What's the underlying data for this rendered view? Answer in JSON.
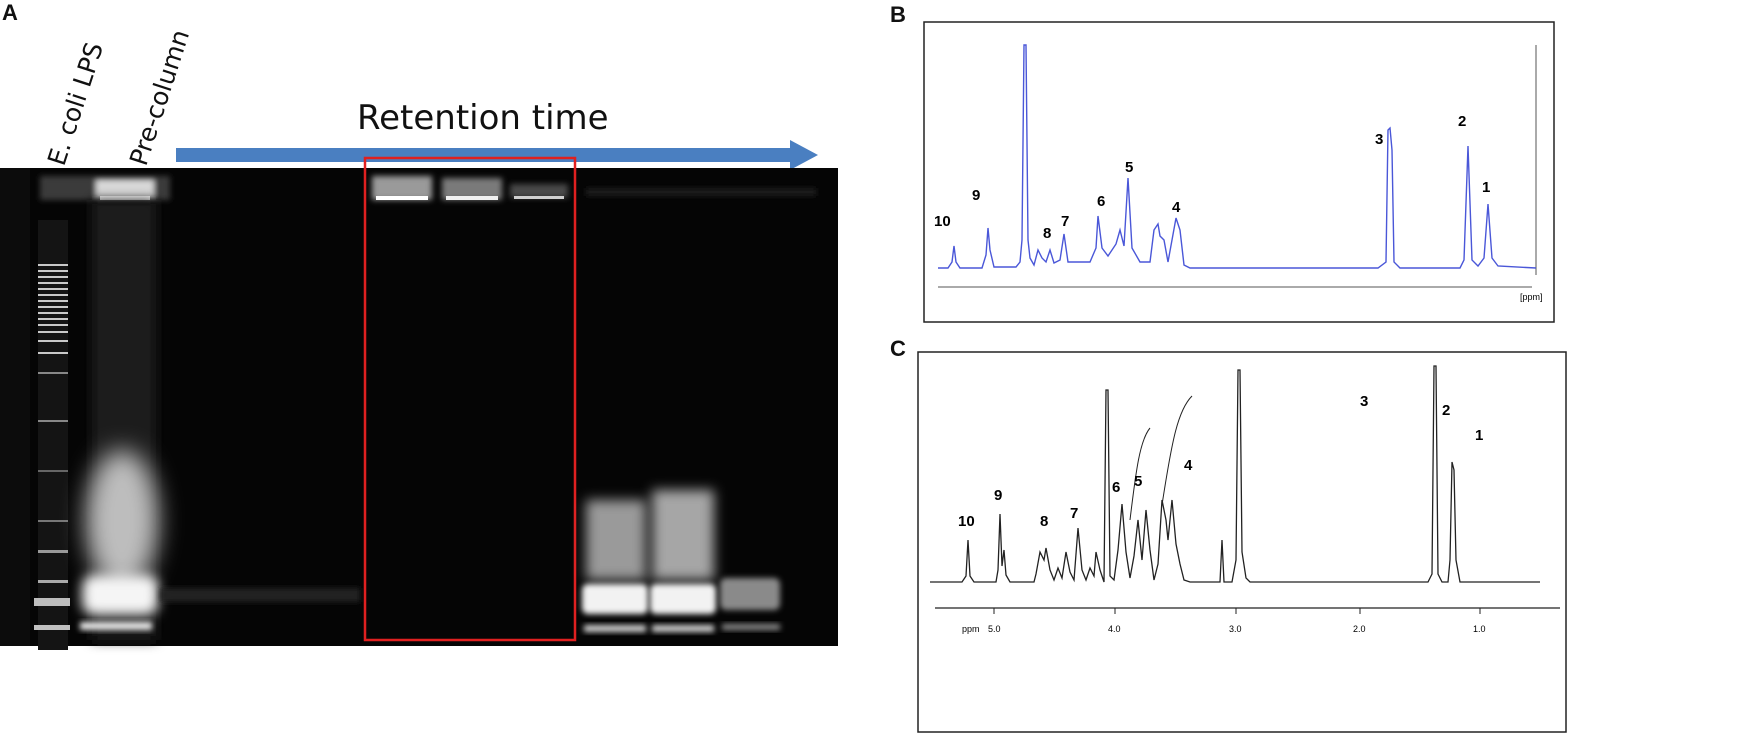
{
  "panels": {
    "a": "A",
    "b": "B",
    "c": "C"
  },
  "gel": {
    "lanes": [
      "E. coli LPS",
      "Pre-column"
    ],
    "arrow_label": "Retention time",
    "highlight_color": "#e02020",
    "arrow_color": "#4a7fc1"
  },
  "nmr_b": {
    "peaks": [
      "10",
      "9",
      "8",
      "7",
      "6",
      "5",
      "4",
      "3",
      "2",
      "1"
    ],
    "line_color": "#4a57d8",
    "axis_unit": "[ppm]"
  },
  "nmr_c": {
    "peaks": [
      "10",
      "9",
      "8",
      "7",
      "6",
      "5",
      "4",
      "3",
      "2",
      "1"
    ],
    "axis_title": "ppm",
    "axis_ticks": [
      "5.0",
      "4.0",
      "3.0",
      "2.0",
      "1.0"
    ],
    "line_color": "#222222"
  }
}
